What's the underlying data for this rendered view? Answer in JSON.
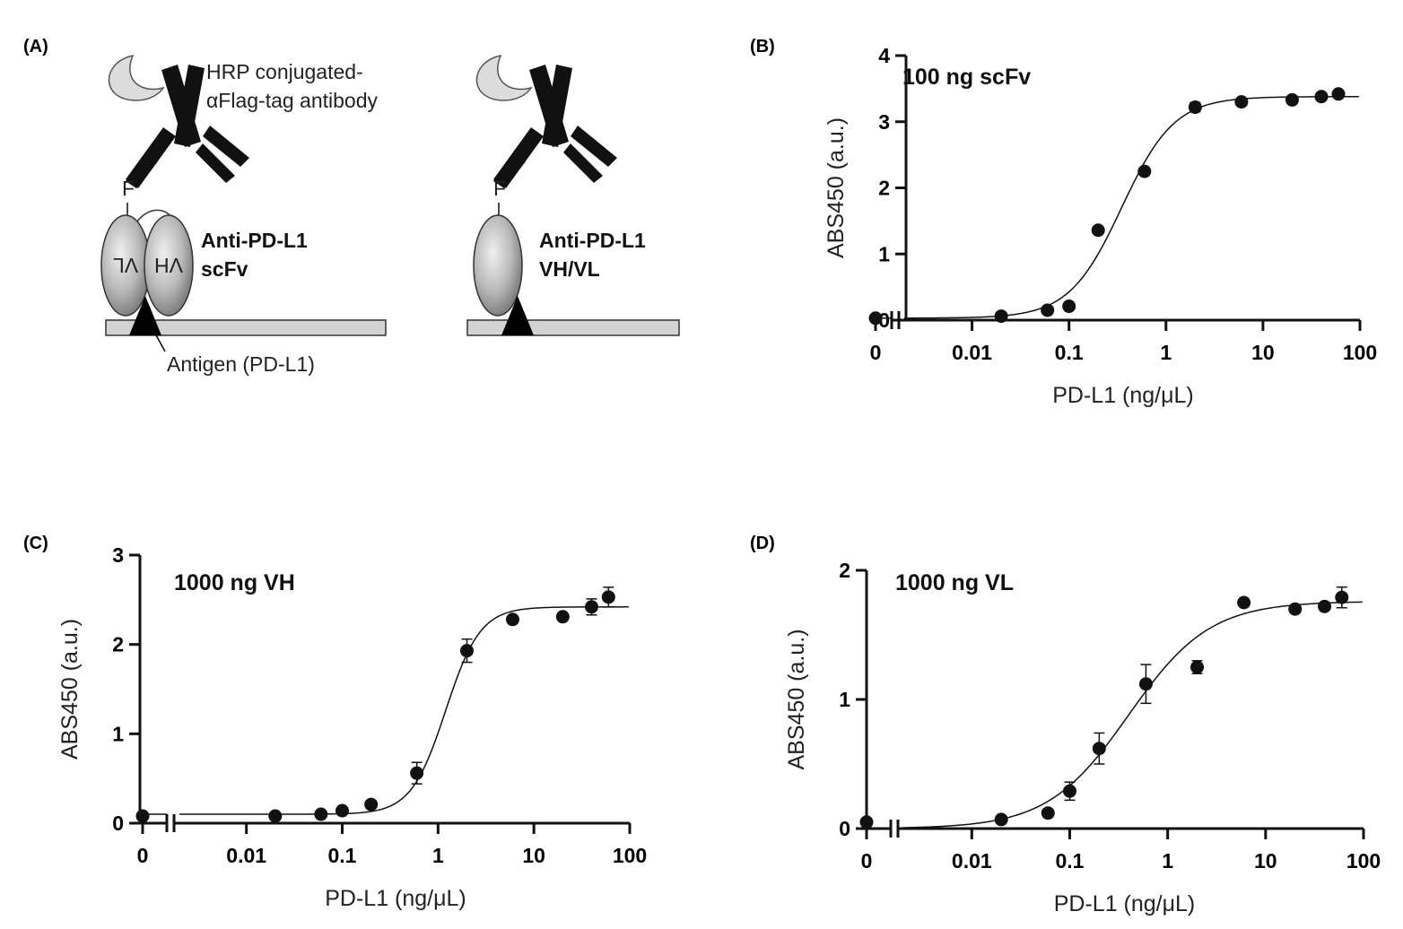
{
  "panel_labels": {
    "a": "(A)",
    "b": "(B)",
    "c": "(C)",
    "d": "(D)"
  },
  "diagram": {
    "hrp_line1": "HRP conjugated-",
    "hrp_alpha": "α",
    "hrp_line2": "Flag-tag antibody",
    "flag_left": "F",
    "flag_right": "F",
    "vl_domain": "VL",
    "vh_domain": "VH",
    "scfv_line1": "Anti-PD-L1",
    "scfv_line2": "scFv",
    "vhvl_line1": "Anti-PD-L1",
    "vhvl_line2": "VH/VL",
    "antigen": "Antigen (PD-L1)"
  },
  "chart_data": [
    {
      "type": "scatter",
      "panel": "(B)",
      "title": "100 ng scFv",
      "xlabel": "PD-L1 (ng/μL)",
      "ylabel": "ABS450 (a.u.)",
      "xscale": "log",
      "xlim": [
        0.002,
        100
      ],
      "ylim": [
        0,
        4
      ],
      "xticks": [
        "0",
        "0.01",
        "0.1",
        "1",
        "10",
        "100"
      ],
      "yticks": [
        "0",
        "1",
        "2",
        "3",
        "4"
      ],
      "x": [
        0.02,
        0.06,
        0.1,
        0.2,
        0.6,
        2,
        6,
        20,
        40,
        60
      ],
      "y": [
        0.06,
        0.15,
        0.21,
        1.36,
        2.25,
        3.22,
        3.3,
        3.33,
        3.38,
        3.42
      ],
      "err": [
        0,
        0,
        0,
        0,
        0,
        0.07,
        0,
        0,
        0,
        0
      ],
      "zero_point": {
        "x": 0,
        "y": 0.03
      },
      "fit": {
        "bottom": 0.03,
        "top": 3.38,
        "ec50": 0.35,
        "hill": 1.6
      }
    },
    {
      "type": "scatter",
      "panel": "(C)",
      "title": "1000 ng VH",
      "xlabel": "PD-L1 (ng/μL)",
      "ylabel": "ABS450 (a.u.)",
      "xscale": "log",
      "xlim": [
        0.002,
        100
      ],
      "ylim": [
        0,
        3
      ],
      "xticks": [
        "0",
        "0.01",
        "0.1",
        "1",
        "10",
        "100"
      ],
      "yticks": [
        "0",
        "1",
        "2",
        "3"
      ],
      "x": [
        0.02,
        0.06,
        0.1,
        0.2,
        0.6,
        2,
        6,
        20,
        40,
        60
      ],
      "y": [
        0.08,
        0.1,
        0.14,
        0.21,
        0.56,
        1.93,
        2.28,
        2.31,
        2.42,
        2.53
      ],
      "err": [
        0,
        0,
        0,
        0,
        0.12,
        0.13,
        0,
        0,
        0.09,
        0.11
      ],
      "zero_point": {
        "x": 0,
        "y": 0.08
      },
      "fit": {
        "bottom": 0.1,
        "top": 2.42,
        "ec50": 1.2,
        "hill": 2.4
      }
    },
    {
      "type": "scatter",
      "panel": "(D)",
      "title": "1000 ng VL",
      "xlabel": "PD-L1 (ng/μL)",
      "ylabel": "ABS450 (a.u.)",
      "xscale": "log",
      "xlim": [
        0.002,
        100
      ],
      "ylim": [
        0,
        2
      ],
      "xticks": [
        "0",
        "0.01",
        "0.1",
        "1",
        "10",
        "100"
      ],
      "yticks": [
        "0",
        "1",
        "2"
      ],
      "x": [
        0.02,
        0.06,
        0.1,
        0.2,
        0.6,
        2,
        6,
        20,
        40,
        60
      ],
      "y": [
        0.07,
        0.12,
        0.29,
        0.62,
        1.12,
        1.25,
        1.75,
        1.7,
        1.72,
        1.79
      ],
      "err": [
        0,
        0,
        0.07,
        0.12,
        0.15,
        0.05,
        0,
        0,
        0,
        0.08
      ],
      "zero_point": {
        "x": 0,
        "y": 0.05
      },
      "fit": {
        "bottom": 0,
        "top": 1.76,
        "ec50": 0.4,
        "hill": 1.05
      }
    }
  ]
}
